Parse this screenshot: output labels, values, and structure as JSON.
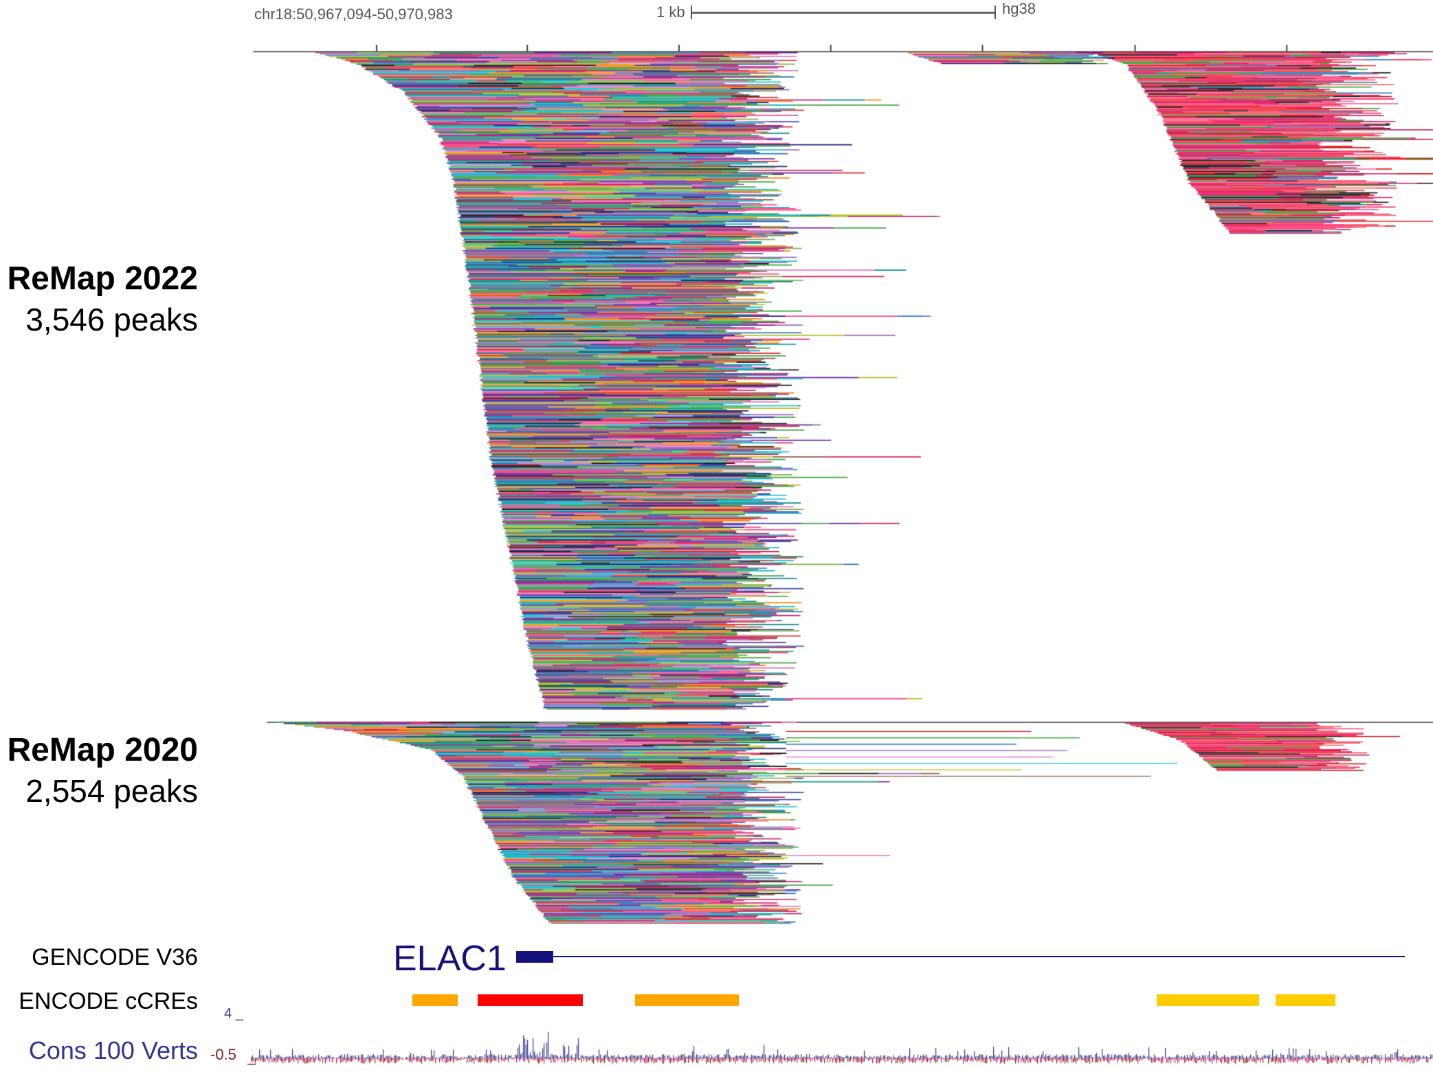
{
  "header": {
    "position": "chr18:50,967,094-50,970,983",
    "scale_label": "1 kb",
    "assembly": "hg38"
  },
  "tracks": {
    "remap2022": {
      "title": "ReMap 2022",
      "count": "3,546 peaks"
    },
    "remap2020": {
      "title": "ReMap 2020",
      "count": "2,554 peaks"
    },
    "gencode": {
      "title": "GENCODE V36",
      "gene": "ELAC1",
      "gene_color": "#14117a"
    },
    "ccres": {
      "title": "ENCODE cCREs",
      "elements": [
        {
          "type": "enhancer",
          "color": "#ffa700"
        },
        {
          "type": "promoter",
          "color": "#ff0000"
        },
        {
          "type": "enhancer",
          "color": "#ffa700"
        },
        {
          "type": "distal enhancer",
          "color": "#ffcd00"
        },
        {
          "type": "distal enhancer",
          "color": "#ffcd00"
        }
      ]
    },
    "cons": {
      "title": "Cons 100 Verts",
      "max": "4 _",
      "min": "-0.5",
      "pos_color": "#2f3590",
      "neg_color": "#8b1a1a"
    }
  }
}
